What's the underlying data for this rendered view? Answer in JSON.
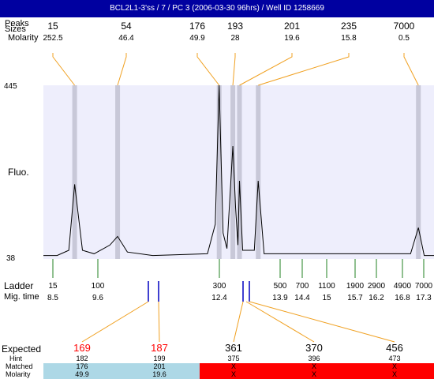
{
  "window": {
    "title": "BCL2L1-3'ss / 7 / PC 3 (2006-03-30 96hrs) / Well ID 1258669"
  },
  "labels": {
    "peaks_row": "Peaks",
    "sizes_row": "Sizes",
    "molarity_row": "Molarity",
    "fluo": "Fluo.",
    "ladder": "Ladder",
    "mig_time": "Mig. time",
    "expected": "Expected",
    "hint": "Hint",
    "matched": "Matched",
    "molarity_bottom": "Molarity"
  },
  "colors": {
    "titlebar": "#0000a0",
    "plot_bg": "#eeeefc",
    "band": "#c8c8d8",
    "leader": "#f0a020",
    "ladder_tick": "#208020",
    "expected_red": "#ff0000",
    "matched_ok": "#add8e6",
    "matched_fail": "#ff0000",
    "marker_blue": "#0000c0"
  },
  "chart_data": {
    "type": "line",
    "title": "",
    "ylabel": "Fluo.",
    "ylim": [
      38,
      445
    ],
    "y_ticks": [
      "445",
      "38"
    ],
    "top_peaks": [
      {
        "size": "15",
        "molarity": "252.5"
      },
      {
        "size": "54",
        "molarity": "46.4"
      },
      {
        "size": "176",
        "molarity": "49.9"
      },
      {
        "size": "193",
        "molarity": "28"
      },
      {
        "size": "201",
        "molarity": "19.6"
      },
      {
        "size": "235",
        "molarity": "15.8"
      },
      {
        "size": "7000",
        "molarity": "0.5"
      }
    ],
    "ladder": [
      {
        "size": "15",
        "time": "8.5"
      },
      {
        "size": "100",
        "time": "9.6"
      },
      {
        "size": "300",
        "time": "12.4"
      },
      {
        "size": "500",
        "time": "13.9"
      },
      {
        "size": "700",
        "time": "14.4"
      },
      {
        "size": "1100",
        "time": "15"
      },
      {
        "size": "1900",
        "time": "15.7"
      },
      {
        "size": "2900",
        "time": "16.2"
      },
      {
        "size": "4900",
        "time": "16.8"
      },
      {
        "size": "7000",
        "time": "17.3"
      }
    ],
    "expected": [
      {
        "expected": "169",
        "hint": "182",
        "matched": "176",
        "molarity": "49.9",
        "status": "ok"
      },
      {
        "expected": "187",
        "hint": "199",
        "matched": "201",
        "molarity": "19.6",
        "status": "ok"
      },
      {
        "expected": "361",
        "hint": "375",
        "matched": "X",
        "molarity": "X",
        "status": "fail"
      },
      {
        "expected": "370",
        "hint": "396",
        "matched": "X",
        "molarity": "X",
        "status": "fail"
      },
      {
        "expected": "456",
        "hint": "473",
        "matched": "X",
        "molarity": "X",
        "status": "fail"
      }
    ],
    "trace": [
      [
        8.05,
        0.02
      ],
      [
        8.35,
        0.05
      ],
      [
        8.5,
        0.43
      ],
      [
        8.7,
        0.05
      ],
      [
        9.0,
        0.03
      ],
      [
        9.4,
        0.08
      ],
      [
        9.6,
        0.13
      ],
      [
        9.85,
        0.04
      ],
      [
        10.5,
        0.02
      ],
      [
        11.9,
        0.03
      ],
      [
        12.1,
        0.2
      ],
      [
        12.2,
        1.0
      ],
      [
        12.3,
        0.15
      ],
      [
        12.4,
        0.06
      ],
      [
        12.55,
        0.65
      ],
      [
        12.62,
        0.3
      ],
      [
        12.68,
        0.08
      ],
      [
        12.72,
        0.45
      ],
      [
        12.8,
        0.05
      ],
      [
        13.1,
        0.05
      ],
      [
        13.2,
        0.45
      ],
      [
        13.35,
        0.03
      ],
      [
        17.1,
        0.03
      ],
      [
        17.3,
        0.18
      ],
      [
        17.45,
        0.02
      ]
    ]
  }
}
